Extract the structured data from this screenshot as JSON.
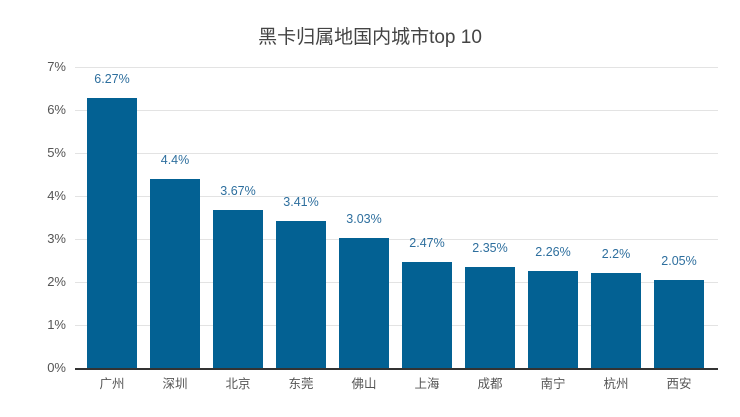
{
  "chart_data": {
    "type": "bar",
    "title": "黑卡归属地国内城市top 10",
    "xlabel": "",
    "ylabel": "",
    "categories": [
      "广州",
      "深圳",
      "北京",
      "东莞",
      "佛山",
      "上海",
      "成都",
      "南宁",
      "杭州",
      "西安"
    ],
    "values": [
      6.27,
      4.4,
      3.67,
      3.41,
      3.03,
      2.47,
      2.35,
      2.26,
      2.2,
      2.05
    ],
    "value_labels": [
      "6.27%",
      "4.4%",
      "3.67%",
      "3.41%",
      "3.03%",
      "2.47%",
      "2.35%",
      "2.26%",
      "2.2%",
      "2.05%"
    ],
    "ylim": [
      0,
      7
    ],
    "yticks": [
      "0%",
      "1%",
      "2%",
      "3%",
      "4%",
      "5%",
      "6%",
      "7%"
    ],
    "grid": true,
    "legend": "none",
    "bar_color": "#036193",
    "label_color": "#2e6f9e"
  }
}
